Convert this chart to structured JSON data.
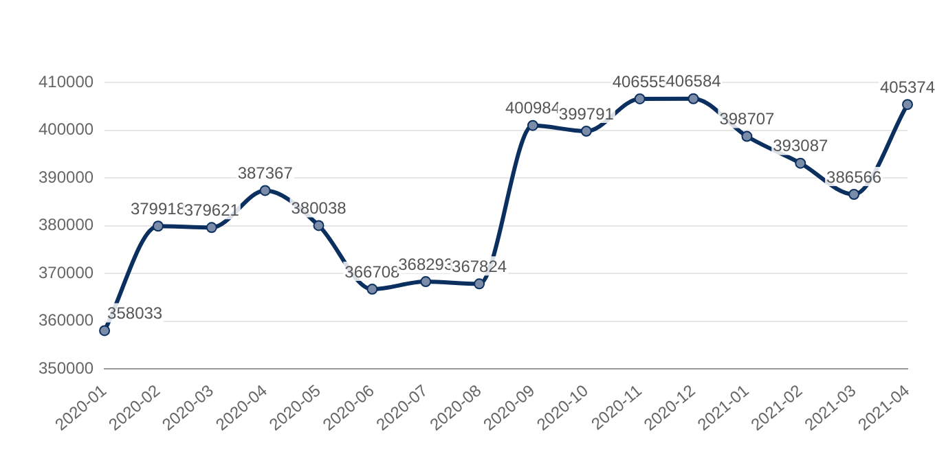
{
  "chart_data": {
    "type": "line",
    "categories": [
      "2020-01",
      "2020-02",
      "2020-03",
      "2020-04",
      "2020-05",
      "2020-06",
      "2020-07",
      "2020-08",
      "2020-09",
      "2020-10",
      "2020-11",
      "2020-12",
      "2021-01",
      "2021-02",
      "2021-03",
      "2021-04"
    ],
    "series": [
      {
        "color": "#0b3060",
        "values": [
          358033,
          379918,
          379621,
          387367,
          380038,
          366708,
          368293,
          367824,
          400984,
          399791,
          406555,
          406584,
          398707,
          393087,
          386566,
          405374
        ]
      }
    ],
    "ylim": [
      350000,
      410000
    ],
    "yticks": [
      350000,
      360000,
      370000,
      380000,
      390000,
      400000,
      410000
    ],
    "grid": "y",
    "marker": "circle",
    "data_labels": true
  }
}
